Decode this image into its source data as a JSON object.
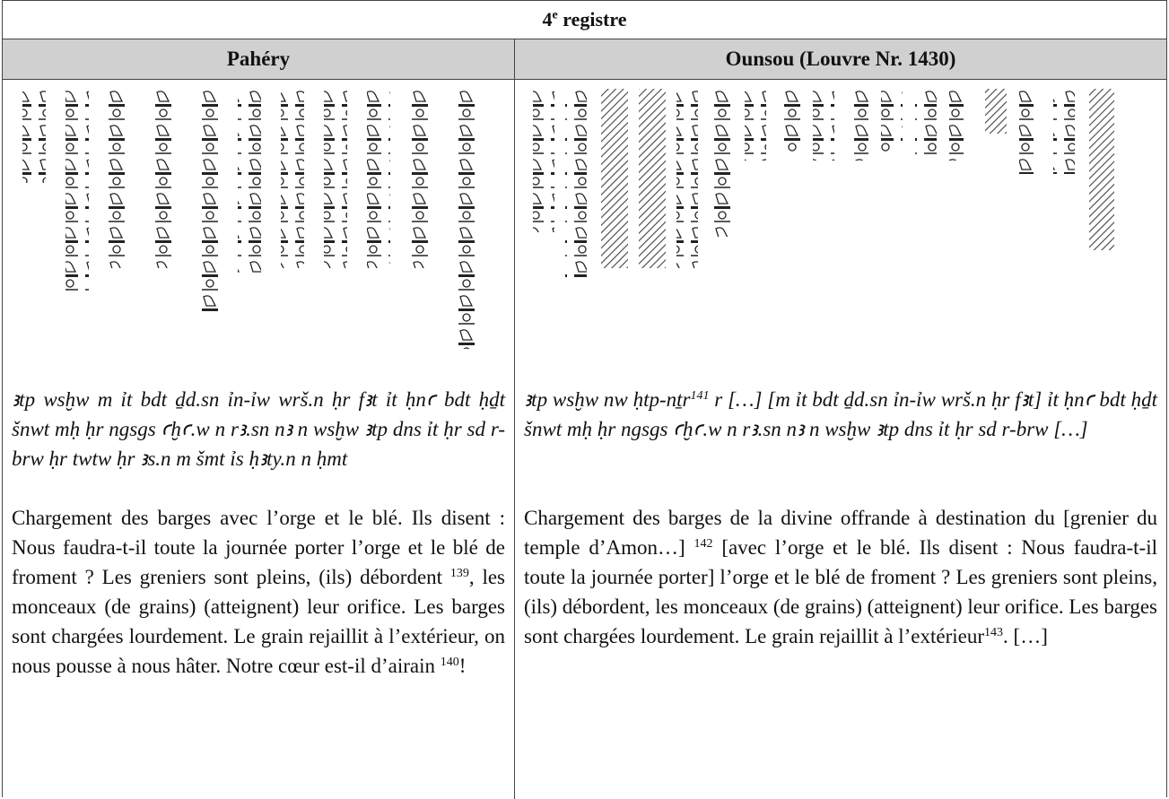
{
  "table": {
    "title": {
      "number": "4",
      "sup": "e",
      "text": "registre"
    },
    "columns": [
      {
        "header": "Pahéry",
        "transliteration": [
          "ꜣtp wsḫw m ỉt bdt ḏd.sn ỉn-ỉw wrš.n ḥr fꜣt ỉt ḥnꜥ bdt ḥḏt šnwt mḥ ḥr ngsgs ꜥḫꜥ.w n rꜣ.sn nꜣ n wsḫw ꜣtp dns ỉt ḥr sd r-brw ḥr twtw ḥr ꜣs.n m šmt ỉs ḥꜣty.n n ḥmt"
        ],
        "translation": [
          "Chargement des barges avec l’orge et le blé. Ils disent : Nous faudra-t-il toute la journée porter l’orge et le blé de froment ? Les greniers sont pleins, (ils) débordent ",
          "139",
          ", les monceaux (de grains) (atteignent) leur orifice. Les barges sont chargées lourdement. Le grain rejaillit à l’extérieur, on nous pousse à nous hâter. Notre cœur est-il d’airain ",
          "140",
          "!"
        ]
      },
      {
        "header": "Ounsou (Louvre Nr. 1430)",
        "transliteration": [
          "ꜣtp wsḫw nw ḥtp-nṯr",
          "141",
          " r […] [m ỉt bdt ḏd.sn ỉn-ỉw wrš.n ḥr fꜣt] ỉt ḥnꜥ bdt ḥḏt šnwt mḥ ḥr ngsgs ꜥḫꜥ.w n rꜣ.sn nꜣ n wsḫw ꜣtp dns ỉt ḥr sd r-brw […]"
        ],
        "translation": [
          "Chargement des barges de la divine offrande à destination du [grenier du temple d’Amon…] ",
          "142",
          " [avec l’orge et le blé. Ils disent : Nous faudra-t-il toute la journée porter] l’orge et le blé de froment ? Les greniers sont pleins, (ils) débordent, les monceaux (de grains) (atteignent) leur orifice. Les barges sont chargées lourdement. Le grain rejaillit à l’extérieur",
          "143",
          ". […]"
        ]
      }
    ]
  }
}
